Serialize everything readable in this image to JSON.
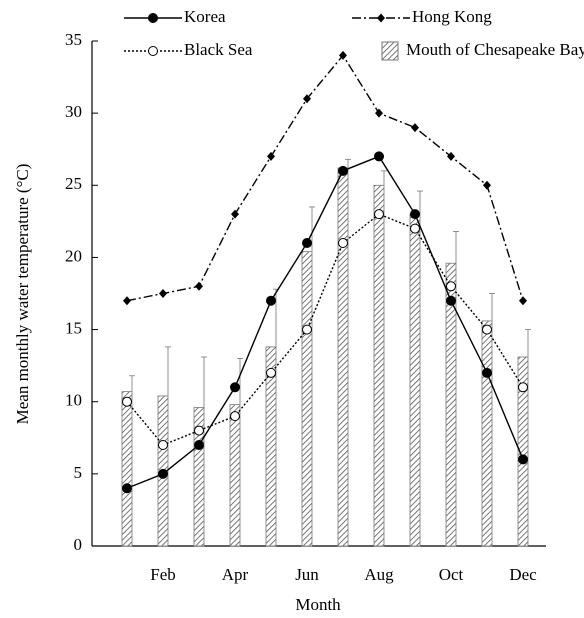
{
  "chart_data": {
    "type": "combo",
    "x_label": "Month",
    "y_label": "Mean monthly water temperature (°C)",
    "categories": [
      null,
      "Feb",
      null,
      "Apr",
      null,
      "Jun",
      null,
      "Aug",
      null,
      "Oct",
      null,
      "Dec"
    ],
    "ylim": [
      0,
      35
    ],
    "yticks": [
      0,
      5,
      10,
      15,
      20,
      25,
      30,
      35
    ],
    "series": [
      {
        "name": "Korea",
        "type": "line",
        "style": "solid",
        "marker": "filled-circle",
        "color": "#000",
        "values": [
          4,
          5,
          7,
          11,
          17,
          21,
          26,
          27,
          23,
          17,
          12,
          6
        ]
      },
      {
        "name": "Hong Kong",
        "type": "line",
        "style": "dash-dot",
        "marker": "diamond",
        "color": "#000",
        "values": [
          17,
          17.5,
          18,
          23,
          27,
          31,
          34,
          30,
          29,
          27,
          25,
          17
        ]
      },
      {
        "name": "Black Sea",
        "type": "line",
        "style": "dotted",
        "marker": "open-circle",
        "color": "#000",
        "values": [
          10,
          7,
          8,
          9,
          12,
          15,
          21,
          23,
          22,
          18,
          15,
          11
        ]
      },
      {
        "name": "Mouth of Chesapeake Bay",
        "type": "bar",
        "color": "#777",
        "values": [
          10.7,
          10.4,
          9.6,
          9.8,
          13.8,
          20.4,
          26.2,
          25,
          23,
          19.6,
          15.6,
          13.1
        ],
        "errors": [
          1.1,
          3.4,
          3.5,
          3.2,
          4,
          3.1,
          0.6,
          1,
          1.6,
          2.2,
          1.9,
          1.9
        ]
      }
    ]
  }
}
